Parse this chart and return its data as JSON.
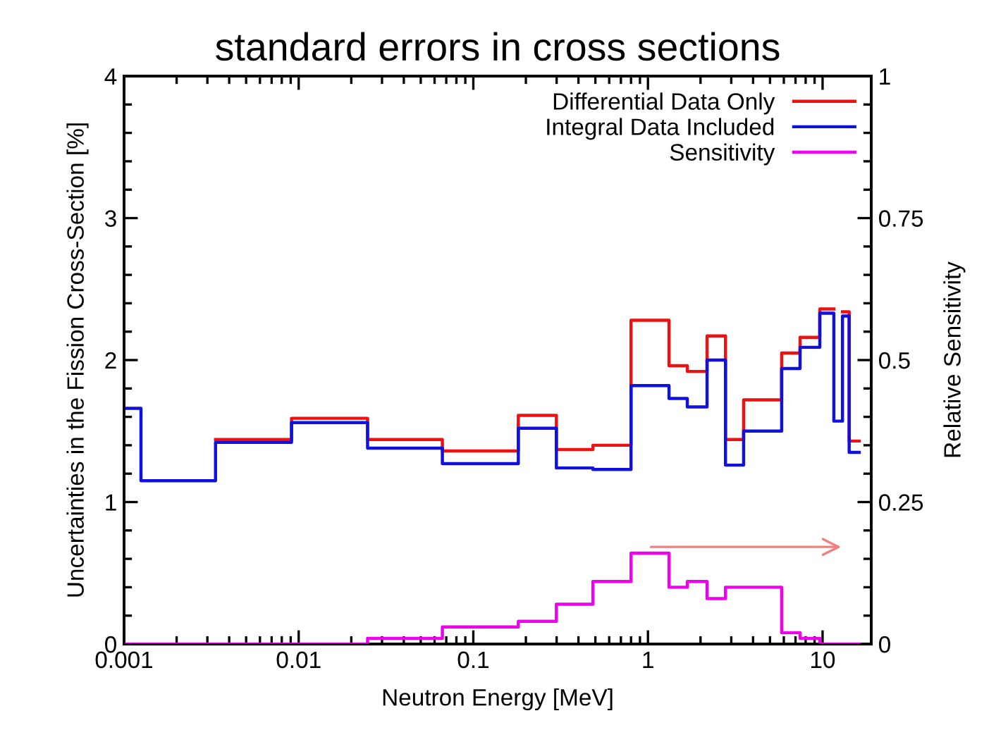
{
  "chart_data": {
    "type": "step",
    "title": "standard errors in cross sections",
    "xlabel": "Neutron Energy [MeV]",
    "ylabel": "Uncertainties in the Fission Cross-Section [%]",
    "y2label": "Relative Sensitivity",
    "x": [
      0.001,
      0.00125,
      0.00334,
      0.0091,
      0.0248,
      0.0665,
      0.181,
      0.299,
      0.484,
      0.8,
      1.32,
      1.68,
      2.18,
      2.78,
      3.53,
      5.83,
      7.43,
      9.64,
      11.6,
      13.0,
      14.2,
      16.2
    ],
    "series": [
      {
        "name": "Differential Data Only",
        "color": "#ee1111",
        "values": [
          null,
          null,
          1.44,
          1.59,
          1.44,
          1.36,
          1.61,
          1.37,
          1.4,
          2.28,
          1.96,
          1.92,
          2.17,
          1.44,
          1.72,
          2.05,
          2.16,
          2.36,
          null,
          2.34,
          1.43,
          1.43
        ]
      },
      {
        "name": "Integral Data Included",
        "color": "#1111dd",
        "values": [
          1.66,
          1.15,
          1.42,
          1.56,
          1.38,
          1.27,
          1.52,
          1.24,
          1.23,
          1.82,
          1.73,
          1.67,
          2.0,
          1.26,
          1.5,
          1.94,
          2.09,
          2.33,
          1.57,
          2.31,
          1.35,
          1.35
        ]
      },
      {
        "name": "Sensitivity",
        "color": "#ee00ee",
        "axis": "y2",
        "values": [
          0,
          0,
          0,
          0,
          0.01,
          0.03,
          0.04,
          0.07,
          0.11,
          0.16,
          0.1,
          0.11,
          0.08,
          0.1,
          0.1,
          0.02,
          0.01,
          0,
          0,
          0,
          0,
          0
        ]
      }
    ],
    "log": "x",
    "xlim": [
      0.001,
      19
    ],
    "xticks": [
      {
        "value": 0.001,
        "label": "0.001"
      },
      {
        "value": 0.01,
        "label": "0.01"
      },
      {
        "value": 0.1,
        "label": "0.1"
      },
      1,
      10
    ],
    "ylim": [
      0,
      4
    ],
    "yticks": [
      0,
      1,
      2,
      3,
      4
    ],
    "y2lim": [
      0,
      1
    ],
    "y2ticks": [
      0,
      0.25,
      0.5,
      0.75,
      1
    ],
    "legend": "top right",
    "grid": false
  }
}
